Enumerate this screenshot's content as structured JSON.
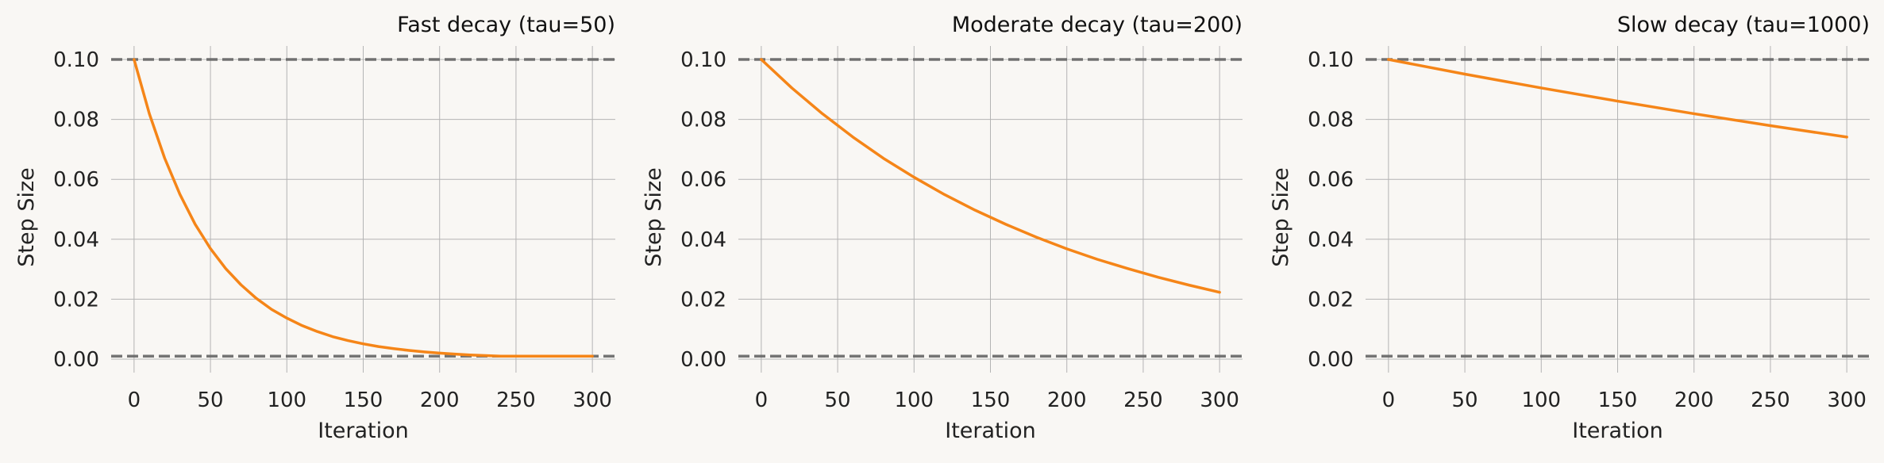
{
  "chart_data": [
    {
      "type": "line",
      "title": "Fast decay (tau=50)",
      "xlabel": "Iteration",
      "ylabel": "Step Size",
      "xlim": [
        -15,
        315
      ],
      "ylim": [
        -0.0045,
        0.1045
      ],
      "xticks": [
        0,
        50,
        100,
        150,
        200,
        250,
        300
      ],
      "yticks": [
        0.0,
        0.02,
        0.04,
        0.06,
        0.08,
        0.1
      ],
      "ytick_labels": [
        "0.00",
        "0.02",
        "0.04",
        "0.06",
        "0.08",
        "0.10"
      ],
      "grid": true,
      "reference_lines": [
        0.1,
        0.001
      ],
      "series": [
        {
          "x": [
            0,
            10,
            20,
            30,
            40,
            50,
            60,
            70,
            80,
            90,
            100,
            110,
            120,
            130,
            140,
            150,
            160,
            170,
            180,
            190,
            200,
            210,
            220,
            230,
            240,
            250,
            260,
            270,
            280,
            290,
            300
          ],
          "y": [
            0.1,
            0.0819,
            0.0671,
            0.055,
            0.045,
            0.0369,
            0.0302,
            0.0248,
            0.0203,
            0.0166,
            0.0137,
            0.0112,
            0.0092,
            0.0075,
            0.0062,
            0.0051,
            0.0042,
            0.0035,
            0.0029,
            0.0024,
            0.002,
            0.0017,
            0.0014,
            0.0012,
            0.001,
            0.001,
            0.001,
            0.001,
            0.001,
            0.001,
            0.001
          ]
        }
      ]
    },
    {
      "type": "line",
      "title": "Moderate decay (tau=200)",
      "xlabel": "Iteration",
      "ylabel": "Step Size",
      "xlim": [
        -15,
        315
      ],
      "ylim": [
        -0.0045,
        0.1045
      ],
      "xticks": [
        0,
        50,
        100,
        150,
        200,
        250,
        300
      ],
      "yticks": [
        0.0,
        0.02,
        0.04,
        0.06,
        0.08,
        0.1
      ],
      "ytick_labels": [
        "0.00",
        "0.02",
        "0.04",
        "0.06",
        "0.08",
        "0.10"
      ],
      "grid": true,
      "reference_lines": [
        0.1,
        0.001
      ],
      "series": [
        {
          "x": [
            0,
            20,
            40,
            60,
            80,
            100,
            120,
            140,
            160,
            180,
            200,
            220,
            240,
            260,
            280,
            300
          ],
          "y": [
            0.1,
            0.0905,
            0.0819,
            0.0741,
            0.067,
            0.0607,
            0.0549,
            0.0497,
            0.045,
            0.0407,
            0.0368,
            0.0333,
            0.0302,
            0.0273,
            0.0247,
            0.0223
          ]
        }
      ]
    },
    {
      "type": "line",
      "title": "Slow decay (tau=1000)",
      "xlabel": "Iteration",
      "ylabel": "Step Size",
      "xlim": [
        -15,
        315
      ],
      "ylim": [
        -0.0045,
        0.1045
      ],
      "xticks": [
        0,
        50,
        100,
        150,
        200,
        250,
        300
      ],
      "yticks": [
        0.0,
        0.02,
        0.04,
        0.06,
        0.08,
        0.1
      ],
      "ytick_labels": [
        "0.00",
        "0.02",
        "0.04",
        "0.06",
        "0.08",
        "0.10"
      ],
      "grid": true,
      "reference_lines": [
        0.1,
        0.001
      ],
      "series": [
        {
          "x": [
            0,
            50,
            100,
            150,
            200,
            250,
            300
          ],
          "y": [
            0.1,
            0.0951,
            0.0905,
            0.0861,
            0.0819,
            0.0779,
            0.0741
          ]
        }
      ]
    }
  ],
  "colors": {
    "background": "#f9f7f4",
    "line": "#f58518",
    "reference_line": "#666666",
    "grid": "#b4b4b4"
  }
}
